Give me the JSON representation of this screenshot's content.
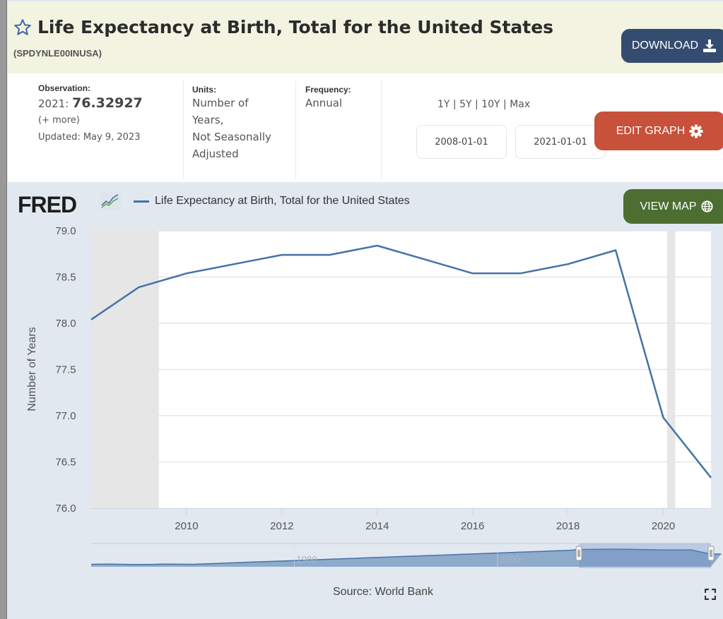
{
  "header": {
    "title": "Life Expectancy at Birth, Total for the United States",
    "series_id": "(SPDYNLE00INUSA)",
    "download_label": "DOWNLOAD",
    "star_icon": "star-outline-icon",
    "download_icon": "download-icon"
  },
  "info": {
    "observation_label": "Observation:",
    "observation_date": "2021:",
    "observation_value": "76.32927",
    "more_link": "(+ more)",
    "updated": "Updated: May 9, 2023",
    "units_label": "Units:",
    "units_lines": [
      "Number of",
      "Years,",
      "Not Seasonally",
      "Adjusted"
    ],
    "frequency_label": "Frequency:",
    "frequency_value": "Annual",
    "range_links": [
      "1Y",
      "5Y",
      "10Y",
      "Max"
    ],
    "range_sep": " | ",
    "start_date": "2008-01-01",
    "end_date": "2021-01-01",
    "edit_graph_label": "EDIT GRAPH",
    "gear_icon": "gear-icon"
  },
  "chart_header": {
    "logo": "FRED",
    "legend_label": "Life Expectancy at Birth, Total for the United States",
    "view_map_label": "VIEW MAP",
    "globe_icon": "globe-icon"
  },
  "colors": {
    "series": "#4572a7",
    "download_btn": "#344c6f",
    "edit_btn": "#c7513a",
    "map_btn": "#4c6e31",
    "recession": "#e6e6e6",
    "header_bg": "#f2f3e1",
    "chart_bg": "#e1e8f0"
  },
  "chart_data": {
    "type": "line",
    "title": "Life Expectancy at Birth, Total for the United States",
    "xlabel": "",
    "ylabel": "Number of Years",
    "x": [
      2008,
      2009,
      2010,
      2011,
      2012,
      2013,
      2014,
      2015,
      2016,
      2017,
      2018,
      2019,
      2020,
      2021
    ],
    "series": [
      {
        "name": "Life Expectancy at Birth, Total for the United States",
        "values": [
          78.04,
          78.39,
          78.54,
          78.64,
          78.74,
          78.74,
          78.84,
          78.69,
          78.54,
          78.54,
          78.64,
          78.79,
          76.98,
          76.33
        ]
      }
    ],
    "xlim": [
      2008,
      2021
    ],
    "ylim": [
      76.0,
      79.0
    ],
    "yticks": [
      "76.0",
      "76.5",
      "77.0",
      "77.5",
      "78.0",
      "78.5",
      "79.0"
    ],
    "xticks": [
      "2010",
      "2012",
      "2014",
      "2016",
      "2018",
      "2020"
    ],
    "recessions": [
      [
        2008.0,
        2009.42
      ],
      [
        2020.08,
        2020.25
      ]
    ],
    "grid": true,
    "legend": "top-left",
    "navigator": {
      "labels": [
        "1980",
        "2000"
      ],
      "range": [
        1960,
        2021
      ],
      "selected": [
        2008,
        2021
      ]
    },
    "source": "Source: World Bank"
  }
}
